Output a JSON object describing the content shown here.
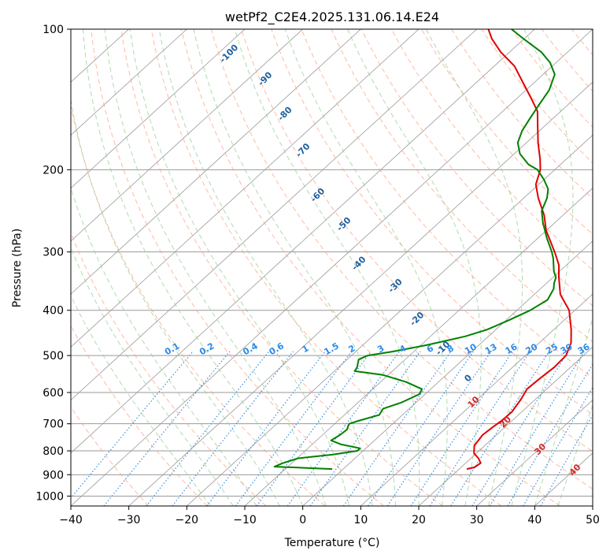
{
  "chart_data": {
    "type": "line",
    "subtype": "skew-T log-P diagram",
    "title": "wetPf2_C2E4.2025.131.06.14.E24",
    "xlabel": "Temperature (°C)",
    "ylabel": "Pressure (hPa)",
    "xlim": [
      -40,
      50
    ],
    "ylim": [
      1050,
      100
    ],
    "yscale": "log",
    "grid": true,
    "x_ticks": [
      -40,
      -30,
      -20,
      -10,
      0,
      10,
      20,
      30,
      40,
      50
    ],
    "x_tick_labels": [
      "−40",
      "−30",
      "−20",
      "−10",
      "0",
      "10",
      "20",
      "30",
      "40",
      "50"
    ],
    "y_ticks": [
      1000,
      900,
      800,
      700,
      600,
      500,
      400,
      300,
      200,
      100
    ],
    "y_tick_labels": [
      "1000",
      "900",
      "800",
      "700",
      "600",
      "500",
      "400",
      "300",
      "200",
      "100"
    ],
    "colors": {
      "temperature": "#e00000",
      "dewpoint": "#008000",
      "isotherm": "#999999",
      "dry_adiabat": "#ff9c7a",
      "moist_adiabat": "#8fca8f",
      "mixing_ratio": "#3a8fe0",
      "isotherm_label": "#1f5f9f",
      "mixing_label": "#2b8ae6",
      "moist_label": "#d62728"
    },
    "series": [
      {
        "key": "temperature",
        "points": [
          [
            875,
            21.3
          ],
          [
            868,
            22.3
          ],
          [
            850,
            22.6
          ],
          [
            830,
            21.3
          ],
          [
            810,
            19.6
          ],
          [
            780,
            18.2
          ],
          [
            740,
            17.6
          ],
          [
            710,
            17.9
          ],
          [
            690,
            18.2
          ],
          [
            660,
            18.3
          ],
          [
            620,
            17.5
          ],
          [
            590,
            16.6
          ],
          [
            560,
            16.8
          ],
          [
            530,
            17.2
          ],
          [
            500,
            17.0
          ],
          [
            470,
            15.5
          ],
          [
            440,
            13.0
          ],
          [
            400,
            9.0
          ],
          [
            370,
            4.5
          ],
          [
            340,
            1.0
          ],
          [
            320,
            -1.3
          ],
          [
            300,
            -4.5
          ],
          [
            270,
            -10.0
          ],
          [
            250,
            -13.3
          ],
          [
            230,
            -17.5
          ],
          [
            215,
            -20.5
          ],
          [
            200,
            -22.5
          ],
          [
            190,
            -24.5
          ],
          [
            175,
            -28.0
          ],
          [
            160,
            -31.5
          ],
          [
            150,
            -34.0
          ],
          [
            140,
            -37.8
          ],
          [
            130,
            -42.0
          ],
          [
            120,
            -46.5
          ],
          [
            112,
            -51.5
          ],
          [
            105,
            -55.5
          ],
          [
            100,
            -58.0
          ]
        ]
      },
      {
        "key": "dewpoint",
        "points": [
          [
            875,
            -1.9
          ],
          [
            870,
            -7.0
          ],
          [
            865,
            -12.3
          ],
          [
            850,
            -11.5
          ],
          [
            830,
            -9.8
          ],
          [
            815,
            -4.5
          ],
          [
            800,
            -1.0
          ],
          [
            790,
            -1.0
          ],
          [
            775,
            -5.0
          ],
          [
            760,
            -7.5
          ],
          [
            740,
            -7.0
          ],
          [
            720,
            -6.8
          ],
          [
            710,
            -7.2
          ],
          [
            700,
            -7.5
          ],
          [
            690,
            -6.5
          ],
          [
            670,
            -4.0
          ],
          [
            650,
            -4.5
          ],
          [
            630,
            -2.5
          ],
          [
            605,
            -1.0
          ],
          [
            590,
            -1.5
          ],
          [
            570,
            -5.5
          ],
          [
            550,
            -11.0
          ],
          [
            540,
            -16.5
          ],
          [
            530,
            -16.8
          ],
          [
            510,
            -18.0
          ],
          [
            500,
            -17.2
          ],
          [
            490,
            -13.5
          ],
          [
            475,
            -9.0
          ],
          [
            465,
            -6.5
          ],
          [
            455,
            -4.0
          ],
          [
            440,
            -1.5
          ],
          [
            420,
            0.5
          ],
          [
            400,
            2.3
          ],
          [
            380,
            3.3
          ],
          [
            360,
            2.3
          ],
          [
            350,
            1.3
          ],
          [
            340,
            0.5
          ],
          [
            330,
            -1.0
          ],
          [
            310,
            -3.5
          ],
          [
            300,
            -5.0
          ],
          [
            280,
            -8.5
          ],
          [
            260,
            -12.0
          ],
          [
            245,
            -14.5
          ],
          [
            230,
            -16.0
          ],
          [
            220,
            -17.5
          ],
          [
            210,
            -20.0
          ],
          [
            200,
            -23.0
          ],
          [
            195,
            -25.5
          ],
          [
            185,
            -29.0
          ],
          [
            175,
            -31.5
          ],
          [
            165,
            -33.0
          ],
          [
            155,
            -34.0
          ],
          [
            145,
            -35.0
          ],
          [
            135,
            -36.0
          ],
          [
            125,
            -38.0
          ],
          [
            118,
            -41.0
          ],
          [
            112,
            -44.5
          ],
          [
            105,
            -50.0
          ],
          [
            100,
            -54.0
          ]
        ]
      }
    ],
    "isotherm_labels": [
      {
        "p": 113,
        "t": -98,
        "text": "-100"
      },
      {
        "p": 128,
        "t": -87,
        "text": "-90"
      },
      {
        "p": 152,
        "t": -77,
        "text": "-80"
      },
      {
        "p": 182,
        "t": -67,
        "text": "-70"
      },
      {
        "p": 227,
        "t": -56,
        "text": "-60"
      },
      {
        "p": 262,
        "t": -46,
        "text": "-50"
      },
      {
        "p": 318,
        "t": -36,
        "text": "-40"
      },
      {
        "p": 355,
        "t": -25.5,
        "text": "-30"
      },
      {
        "p": 418,
        "t": -15.5,
        "text": "-20"
      },
      {
        "p": 483,
        "t": -5.5,
        "text": "-10"
      },
      {
        "p": 560,
        "t": 4.5,
        "text": "0"
      }
    ],
    "mixing_ratio_labels": [
      {
        "p": 485,
        "x": -22.5,
        "text": "0.1"
      },
      {
        "p": 485,
        "x": -16.5,
        "text": "0.2"
      },
      {
        "p": 485,
        "x": -9.0,
        "text": "0.4"
      },
      {
        "p": 485,
        "x": -4.5,
        "text": "0.6"
      },
      {
        "p": 485,
        "x": 0.5,
        "text": "1"
      },
      {
        "p": 485,
        "x": 5.0,
        "text": "1.5"
      },
      {
        "p": 485,
        "x": 8.5,
        "text": "2"
      },
      {
        "p": 485,
        "x": 13.5,
        "text": "3"
      },
      {
        "p": 485,
        "x": 17.3,
        "text": "4"
      },
      {
        "p": 485,
        "x": 22.0,
        "text": "6"
      },
      {
        "p": 485,
        "x": 25.5,
        "text": "8"
      },
      {
        "p": 485,
        "x": 29.0,
        "text": "10"
      },
      {
        "p": 485,
        "x": 32.5,
        "text": "13"
      },
      {
        "p": 485,
        "x": 36.0,
        "text": "16"
      },
      {
        "p": 485,
        "x": 39.5,
        "text": "20"
      },
      {
        "p": 485,
        "x": 43.0,
        "text": "25"
      },
      {
        "p": 485,
        "x": 45.5,
        "text": "30"
      },
      {
        "p": 485,
        "x": 48.5,
        "text": "36"
      }
    ],
    "moist_adiabat_labels": [
      {
        "p": 630,
        "x": 29.5,
        "text": "10"
      },
      {
        "p": 695,
        "x": 35.0,
        "text": "20"
      },
      {
        "p": 795,
        "x": 41.0,
        "text": "30"
      },
      {
        "p": 880,
        "x": 47.0,
        "text": "40"
      }
    ]
  }
}
